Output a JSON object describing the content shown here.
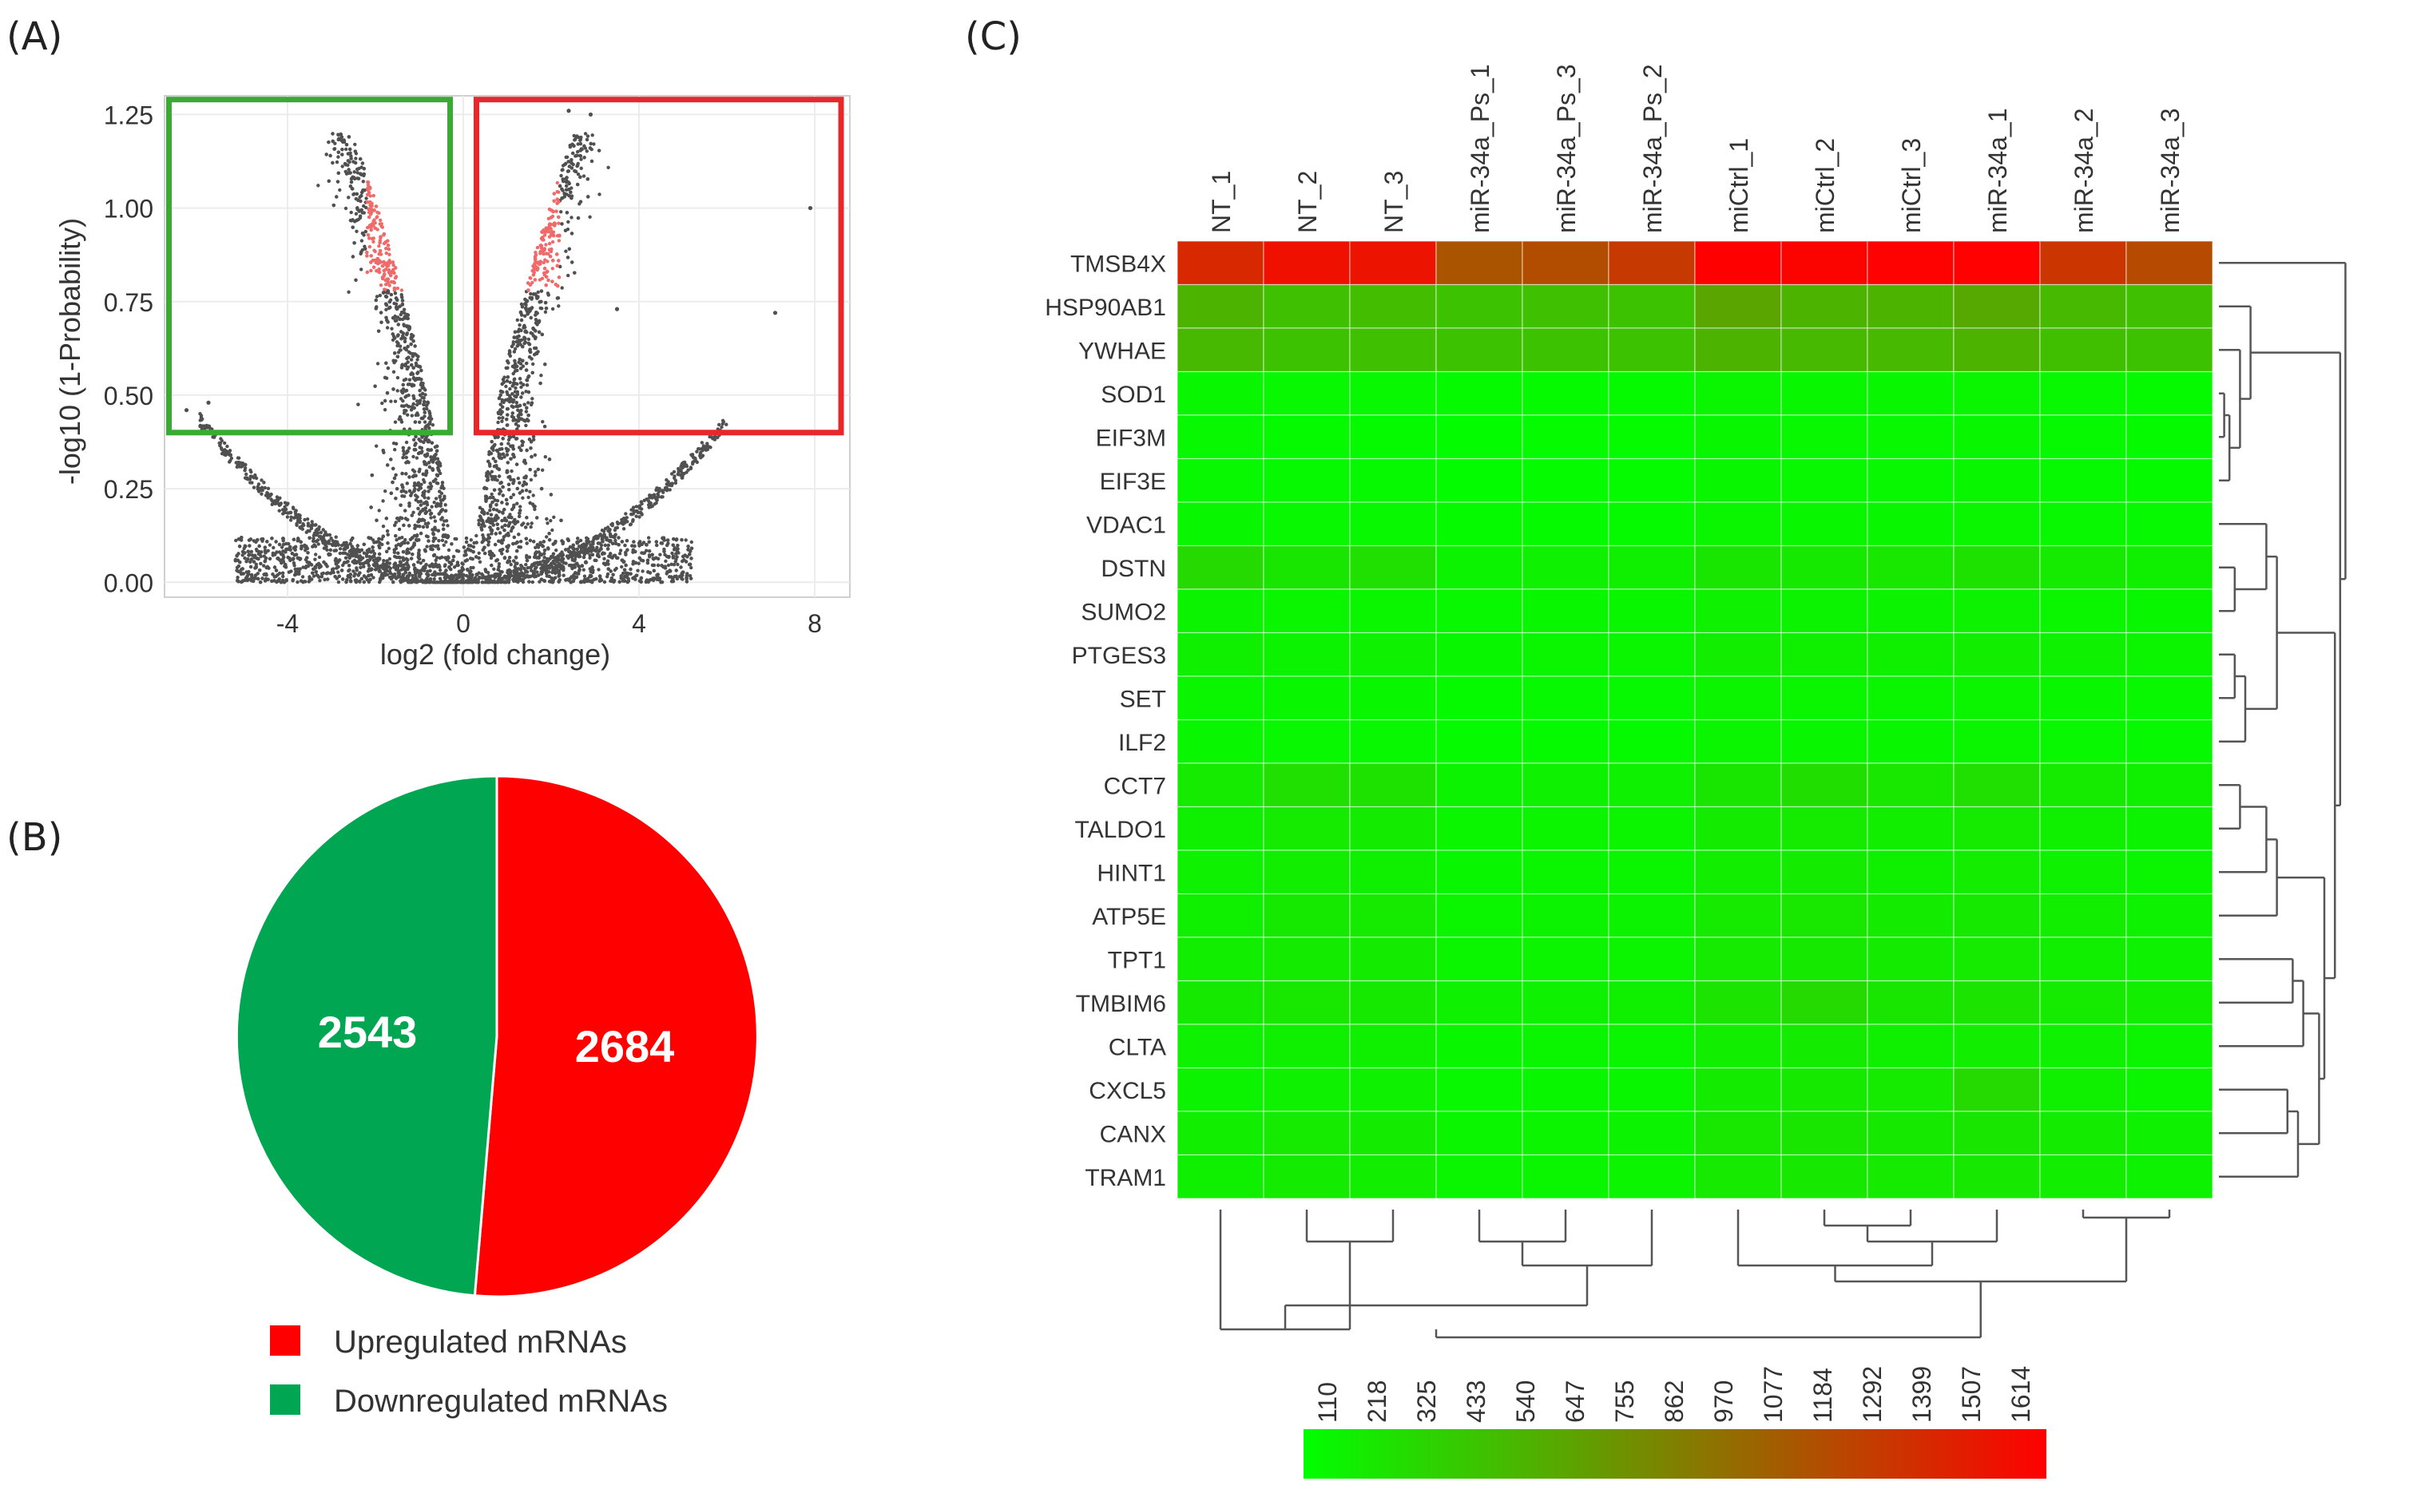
{
  "panels": {
    "a": "(A)",
    "b": "(B)",
    "c": "(C)"
  },
  "colors": {
    "up_red": "#ff0000",
    "down_green": "#00a651",
    "box_green": "#3aaa35",
    "box_red": "#e8272b",
    "point_gray": "#505050",
    "point_red": "#f06a6a",
    "heat_low": "#00ff00",
    "heat_high": "#ff0000"
  },
  "chart_data": [
    {
      "id": "volcano",
      "type": "scatter",
      "title": "",
      "xlabel": "log2 (fold change)",
      "ylabel": "-log10 (1-Probability)",
      "xlim": [
        -6.8,
        8.8
      ],
      "ylim": [
        -0.04,
        1.3
      ],
      "xticks": [
        -4,
        0,
        4,
        8
      ],
      "yticks": [
        "0.00",
        "0.25",
        "0.50",
        "0.75",
        "1.00",
        "1.25"
      ],
      "ytick_values": [
        0,
        0.25,
        0.5,
        0.75,
        1.0,
        1.25
      ],
      "highlight_boxes": [
        {
          "name": "down-region",
          "x": [
            -6.7,
            -0.3
          ],
          "y": [
            0.4,
            1.3
          ],
          "color": "green"
        },
        {
          "name": "up-region",
          "x": [
            0.3,
            8.6
          ],
          "y": [
            0.4,
            1.3
          ],
          "color": "red"
        }
      ],
      "notable_points": [
        {
          "x": 7.9,
          "y": 1.0
        },
        {
          "x": 7.1,
          "y": 0.72
        },
        {
          "x": 3.5,
          "y": 0.73
        },
        {
          "x": -6.3,
          "y": 0.46
        },
        {
          "x": -5.8,
          "y": 0.48
        },
        {
          "x": -5.3,
          "y": 0.34
        },
        {
          "x": 2.9,
          "y": 1.25
        },
        {
          "x": 2.4,
          "y": 1.26
        }
      ],
      "bulk_points_note": "approx. 5227 genes forming a V-shaped cloud; points above ~0.8 near the V arms highlighted red"
    },
    {
      "id": "pie",
      "type": "pie",
      "title": "",
      "slices": [
        {
          "label": "Upregulated mRNAs",
          "value": 2684,
          "display": "2684",
          "color": "#ff0000"
        },
        {
          "label": "Downregulated mRNAs",
          "value": 2543,
          "display": "2543",
          "color": "#00a651"
        }
      ],
      "legend": [
        "Upregulated mRNAs",
        "Downregulated mRNAs"
      ],
      "legend_position": "bottom"
    },
    {
      "id": "heatmap",
      "type": "heatmap",
      "title": "",
      "columns": [
        "NT_1",
        "NT_2",
        "NT_3",
        "miR-34a_Ps_1",
        "miR-34a_Ps_3",
        "miR-34a_Ps_2",
        "miCtrl_1",
        "miCtrl_2",
        "miCtrl_3",
        "miR-34a_1",
        "miR-34a_2",
        "miR-34a_3"
      ],
      "rows": [
        "TMSB4X",
        "HSP90AB1",
        "YWHAE",
        "SOD1",
        "EIF3M",
        "EIF3E",
        "VDAC1",
        "DSTN",
        "SUMO2",
        "PTGES3",
        "SET",
        "ILF2",
        "CCT7",
        "TALDO1",
        "HINT1",
        "ATP5E",
        "TPT1",
        "TMBIM6",
        "CLTA",
        "CXCL5",
        "CANX",
        "TRAM1"
      ],
      "values": [
        [
          1380,
          1520,
          1500,
          1120,
          1160,
          1280,
          1614,
          1590,
          1600,
          1610,
          1300,
          1180
        ],
        [
          560,
          480,
          500,
          470,
          480,
          470,
          640,
          560,
          560,
          620,
          520,
          480
        ],
        [
          520,
          470,
          480,
          470,
          470,
          470,
          560,
          520,
          520,
          560,
          490,
          470
        ],
        [
          160,
          150,
          150,
          140,
          140,
          140,
          170,
          160,
          160,
          170,
          150,
          140
        ],
        [
          150,
          140,
          140,
          130,
          135,
          135,
          160,
          150,
          150,
          160,
          145,
          140
        ],
        [
          150,
          145,
          145,
          130,
          135,
          135,
          155,
          150,
          150,
          155,
          145,
          140
        ],
        [
          160,
          150,
          150,
          140,
          140,
          140,
          170,
          160,
          160,
          165,
          150,
          145
        ],
        [
          330,
          260,
          290,
          180,
          190,
          200,
          260,
          240,
          250,
          280,
          230,
          200
        ],
        [
          180,
          170,
          170,
          150,
          155,
          155,
          190,
          180,
          180,
          185,
          170,
          160
        ],
        [
          200,
          180,
          190,
          160,
          165,
          165,
          210,
          200,
          200,
          210,
          190,
          175
        ],
        [
          170,
          160,
          160,
          140,
          145,
          145,
          175,
          170,
          170,
          175,
          160,
          150
        ],
        [
          160,
          150,
          150,
          135,
          140,
          140,
          165,
          160,
          160,
          165,
          150,
          145
        ],
        [
          230,
          290,
          280,
          180,
          190,
          190,
          260,
          300,
          250,
          290,
          230,
          200
        ],
        [
          200,
          230,
          220,
          170,
          175,
          175,
          220,
          230,
          210,
          230,
          200,
          180
        ],
        [
          190,
          210,
          200,
          160,
          165,
          165,
          210,
          220,
          200,
          215,
          190,
          170
        ],
        [
          200,
          240,
          230,
          170,
          180,
          180,
          230,
          250,
          220,
          240,
          210,
          185
        ],
        [
          210,
          220,
          220,
          170,
          175,
          175,
          230,
          240,
          220,
          230,
          205,
          185
        ],
        [
          240,
          250,
          240,
          190,
          195,
          200,
          270,
          330,
          260,
          270,
          230,
          210
        ],
        [
          190,
          200,
          200,
          160,
          165,
          165,
          210,
          220,
          200,
          210,
          190,
          175
        ],
        [
          180,
          190,
          190,
          150,
          155,
          160,
          220,
          240,
          230,
          330,
          200,
          170
        ],
        [
          210,
          230,
          220,
          170,
          175,
          180,
          250,
          260,
          240,
          260,
          220,
          190
        ],
        [
          200,
          220,
          210,
          165,
          170,
          175,
          235,
          245,
          230,
          245,
          210,
          185
        ]
      ],
      "scale_ticks": [
        "110",
        "218",
        "325",
        "433",
        "540",
        "647",
        "755",
        "862",
        "970",
        "1077",
        "1184",
        "1292",
        "1399",
        "1507",
        "1614"
      ],
      "scale_range": [
        110,
        1614
      ]
    }
  ]
}
